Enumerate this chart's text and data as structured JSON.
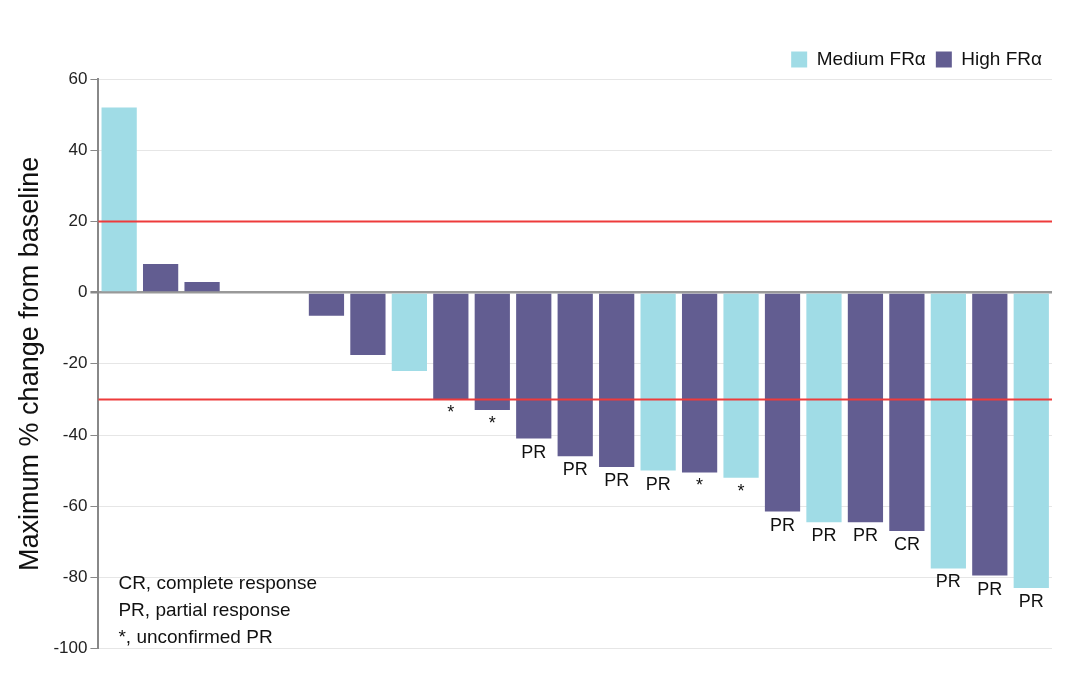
{
  "chart_data": {
    "type": "bar",
    "ylabel": "Maximum % change from baseline",
    "categories": [
      null,
      null,
      null,
      null,
      null,
      null,
      null,
      null,
      null,
      null,
      null,
      null,
      null,
      null,
      null,
      null,
      null,
      null,
      null,
      null,
      null,
      null,
      null
    ],
    "series": [
      {
        "name": "Medium FRα",
        "color": "#a0dce6",
        "values": [
          52,
          null,
          null,
          null,
          null,
          null,
          null,
          -22,
          null,
          null,
          null,
          null,
          null,
          -50,
          null,
          -52,
          null,
          -64.5,
          null,
          null,
          -77.5,
          null,
          -83
        ],
        "value_labels": [
          null,
          null,
          null,
          null,
          null,
          null,
          null,
          null,
          null,
          null,
          null,
          null,
          null,
          "PR",
          null,
          "*",
          null,
          "PR",
          null,
          null,
          "PR",
          null,
          "PR"
        ]
      },
      {
        "name": "High FRα",
        "color": "#625d91",
        "values": [
          null,
          8,
          3,
          null,
          null,
          -6.5,
          -17.5,
          null,
          -30,
          -33,
          -41,
          -46,
          -49,
          null,
          -50.5,
          null,
          -61.5,
          null,
          -64.5,
          -67,
          null,
          -79.5,
          null
        ],
        "value_labels": [
          null,
          null,
          null,
          null,
          null,
          null,
          null,
          null,
          "*",
          "*",
          "PR",
          "PR",
          "PR",
          null,
          "*",
          null,
          "PR",
          null,
          "PR",
          "CR",
          null,
          "PR",
          null
        ]
      }
    ],
    "ylim": [
      -100,
      60
    ],
    "yticks": [
      -100,
      -80,
      -60,
      -40,
      -20,
      0,
      20,
      40,
      60
    ],
    "grid": "y",
    "legend": "top right",
    "ref_lines": [
      {
        "axis": "y",
        "value": 20,
        "color": "#ee3b3b"
      },
      {
        "axis": "y",
        "value": -30,
        "color": "#ee3b3b"
      }
    ],
    "annotations": [
      "CR, complete response",
      "PR, partial response",
      "*, unconfirmed PR"
    ]
  }
}
